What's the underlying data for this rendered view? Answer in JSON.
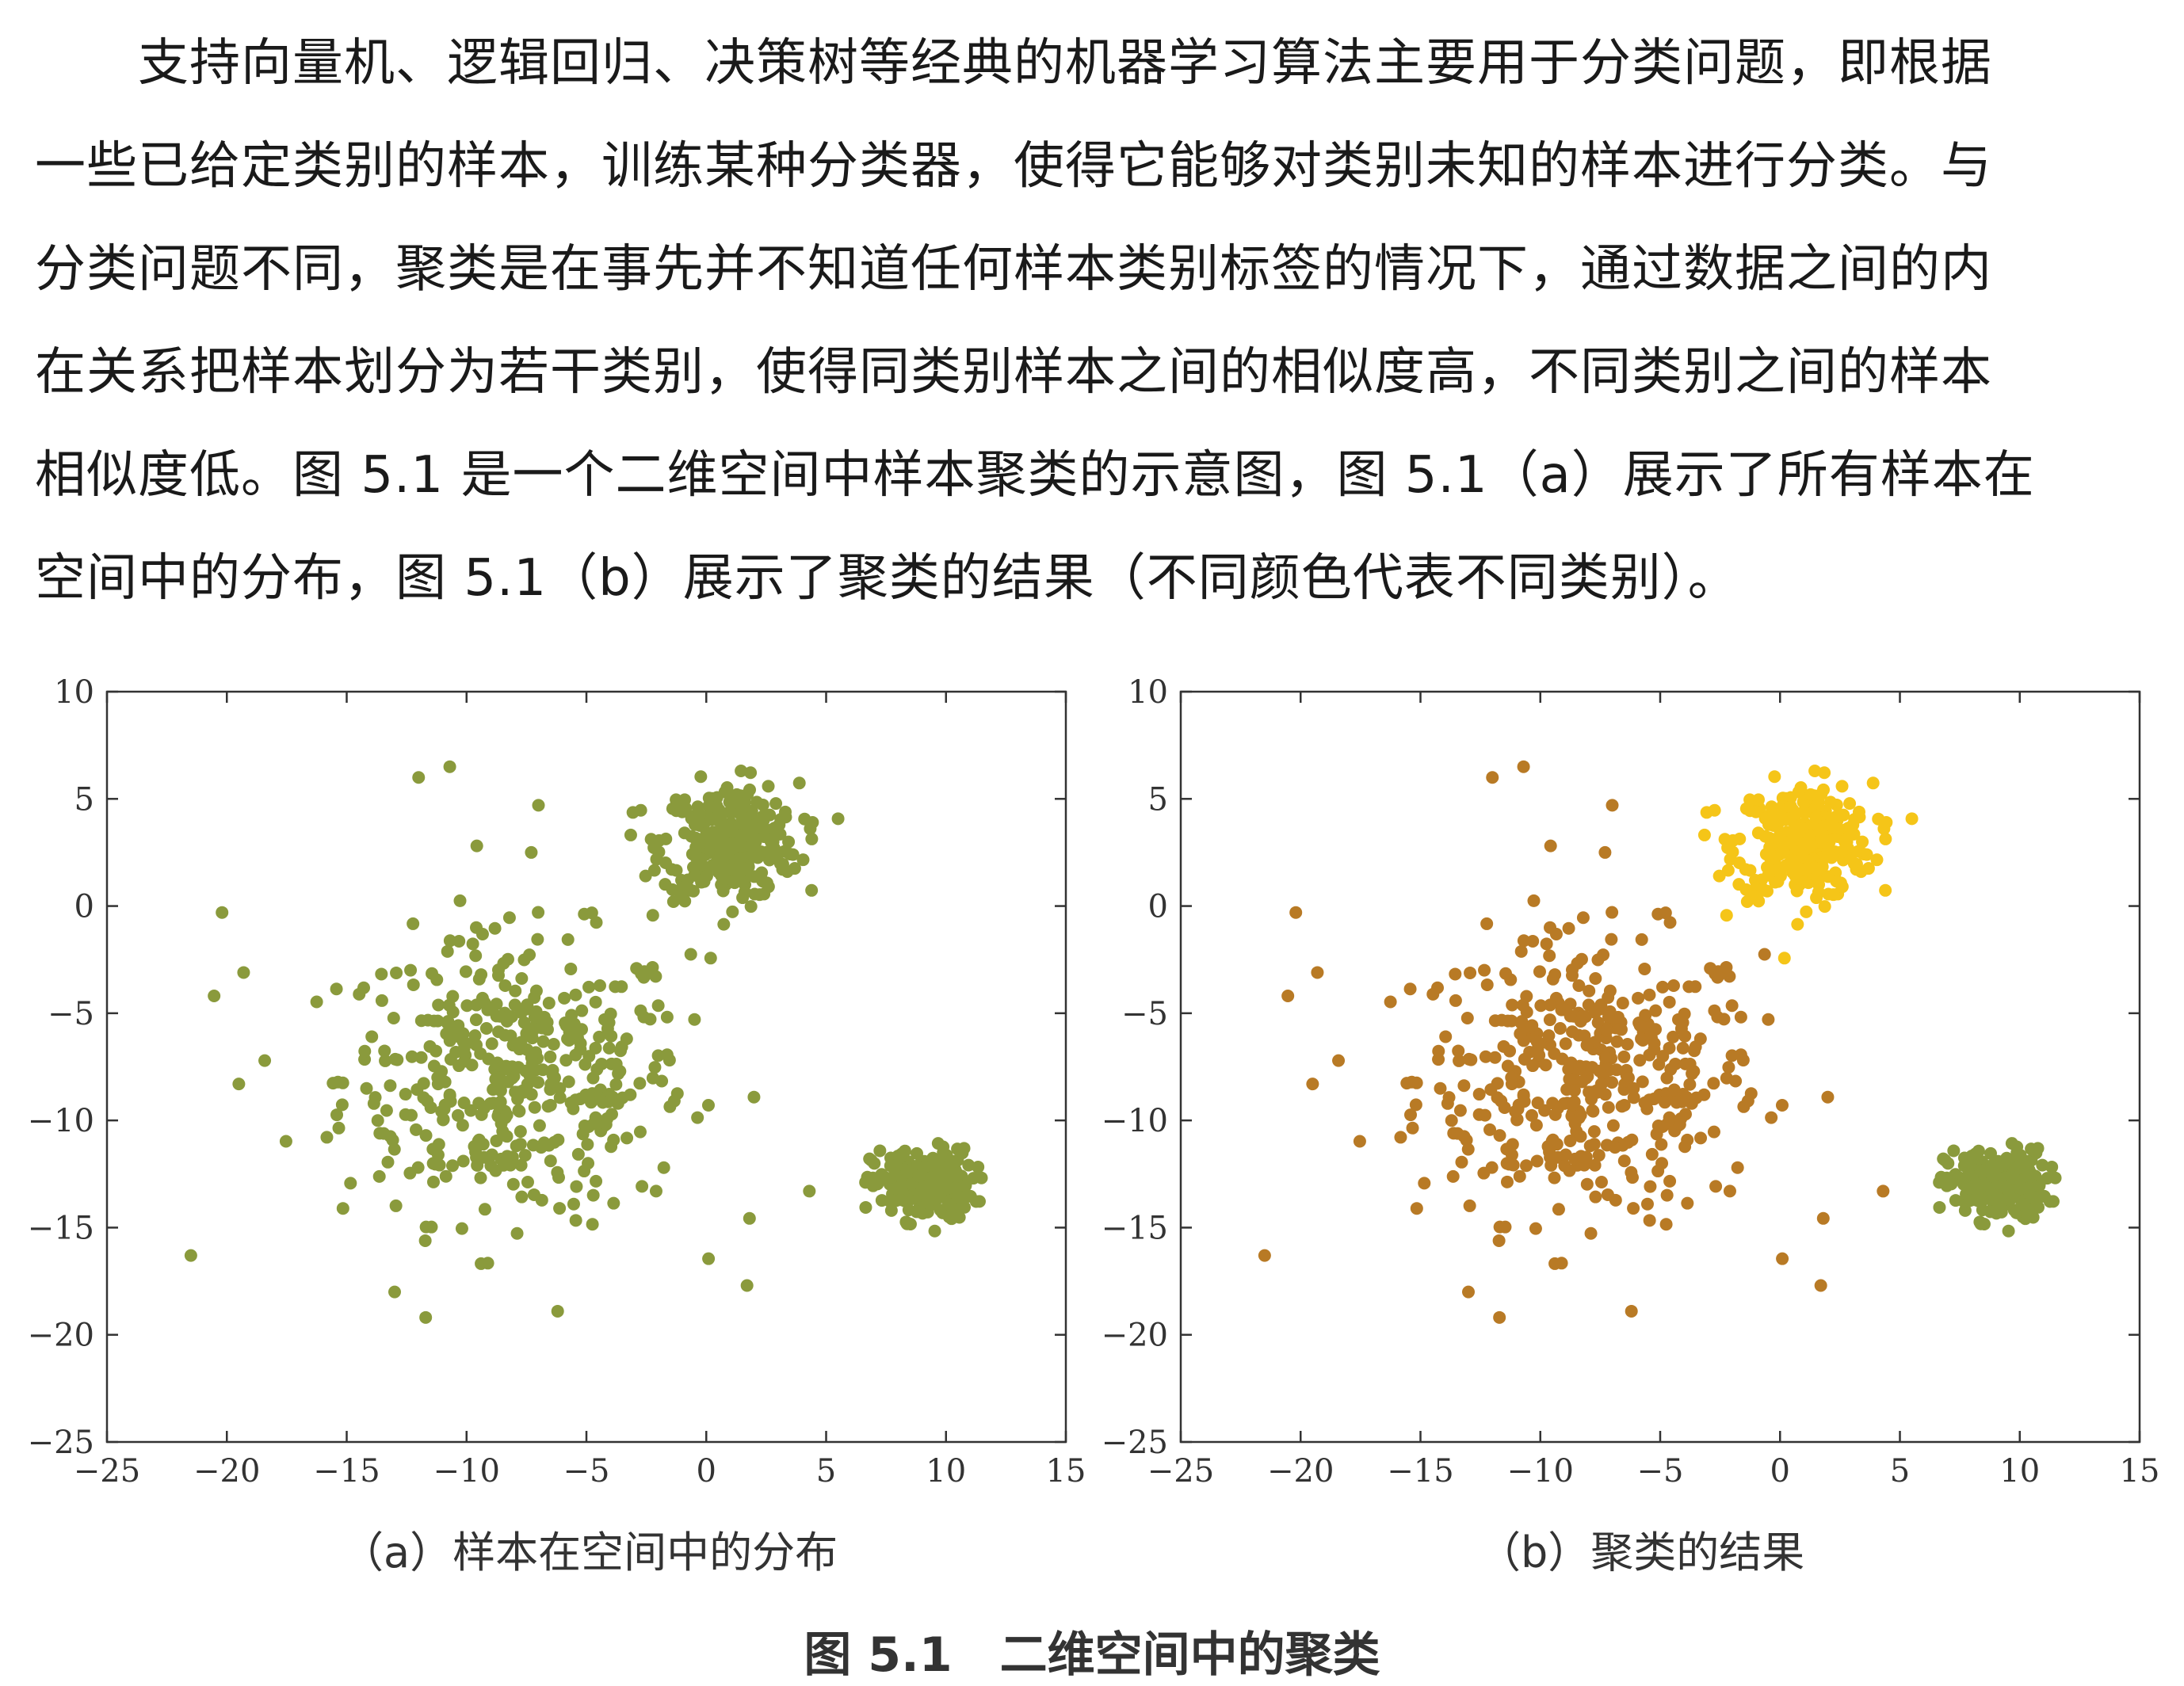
{
  "paragraph": [
    "支持向量机、逻辑回归、决策树等经典的机器学习算法主要用于分类问题，即根据",
    "一些已给定类别的样本，训练某种分类器，使得它能够对类别未知的样本进行分类。与",
    "分类问题不同，聚类是在事先并不知道任何样本类别标签的情况下，通过数据之间的内",
    "在关系把样本划分为若干类别，使得同类别样本之间的相似度高，不同类别之间的样本",
    "相似度低。图 5.1 是一个二维空间中样本聚类的示意图，图 5.1（a）展示了所有样本在",
    "空间中的分布，图 5.1（b）展示了聚类的结果（不同颜色代表不同类别）。"
  ],
  "figure_title": "图 5.1　二维空间中的聚类",
  "chart_data": [
    {
      "type": "scatter",
      "caption": "（a）样本在空间中的分布",
      "xlim": [
        -25,
        15
      ],
      "ylim": [
        -25,
        10
      ],
      "xticks": [
        -25,
        -20,
        -15,
        -10,
        -5,
        0,
        5,
        10,
        15
      ],
      "yticks": [
        10,
        5,
        0,
        -5,
        -10,
        -15,
        -20,
        -25
      ],
      "xticklabels": [
        "−25",
        "−20",
        "−15",
        "−10",
        "−5",
        "0",
        "5",
        "10",
        "15"
      ],
      "yticklabels": [
        "10",
        "5",
        "0",
        "−5",
        "−10",
        "−15",
        "−20",
        "−25"
      ],
      "grid": false,
      "clusters": [
        {
          "center": [
            -8,
            -8
          ],
          "spread": [
            4.8,
            4.4
          ],
          "count": 430,
          "color": "#8a9a3c"
        },
        {
          "center": [
            1,
            3
          ],
          "spread": [
            1.9,
            1.8
          ],
          "count": 300,
          "color": "#8a9a3c"
        },
        {
          "center": [
            9,
            -13
          ],
          "spread": [
            1.4,
            1.1
          ],
          "count": 220,
          "color": "#8a9a3c"
        }
      ],
      "outliers": [
        [
          -21.5,
          -16.3
        ],
        [
          -20.2,
          -0.3
        ],
        [
          -19.3,
          -3.1
        ],
        [
          -19.5,
          -8.3
        ],
        [
          -12,
          6
        ],
        [
          -10.7,
          6.5
        ],
        [
          -7,
          4.7
        ],
        [
          -7.3,
          2.5
        ],
        [
          -6.2,
          -18.9
        ],
        [
          1.7,
          -17.7
        ],
        [
          4.3,
          -13.3
        ],
        [
          -13,
          -18
        ]
      ]
    },
    {
      "type": "scatter",
      "caption": "（b）聚类的结果",
      "xlim": [
        -25,
        15
      ],
      "ylim": [
        -25,
        10
      ],
      "xticks": [
        -25,
        -20,
        -15,
        -10,
        -5,
        0,
        5,
        10,
        15
      ],
      "yticks": [
        10,
        5,
        0,
        -5,
        -10,
        -15,
        -20,
        -25
      ],
      "xticklabels": [
        "−25",
        "−20",
        "−15",
        "−10",
        "−5",
        "0",
        "5",
        "10",
        "15"
      ],
      "yticklabels": [
        "10",
        "5",
        "0",
        "−5",
        "−10",
        "−15",
        "−20",
        "−25"
      ],
      "grid": false,
      "clusters": [
        {
          "center": [
            -8,
            -8
          ],
          "spread": [
            4.8,
            4.4
          ],
          "count": 430,
          "color": "#b87a25"
        },
        {
          "center": [
            1,
            3
          ],
          "spread": [
            1.9,
            1.8
          ],
          "count": 300,
          "color": "#f5c518"
        },
        {
          "center": [
            9,
            -13
          ],
          "spread": [
            1.4,
            1.1
          ],
          "count": 220,
          "color": "#8a9a3c"
        }
      ],
      "outliers": [
        [
          -21.5,
          -16.3
        ],
        [
          -20.2,
          -0.3
        ],
        [
          -19.3,
          -3.1
        ],
        [
          -19.5,
          -8.3
        ],
        [
          -12,
          6
        ],
        [
          -10.7,
          6.5
        ],
        [
          -7,
          4.7
        ],
        [
          -7.3,
          2.5
        ],
        [
          -6.2,
          -18.9
        ],
        [
          1.7,
          -17.7
        ],
        [
          4.3,
          -13.3
        ],
        [
          -13,
          -18
        ]
      ],
      "outlier_color": "#b87a25"
    }
  ]
}
